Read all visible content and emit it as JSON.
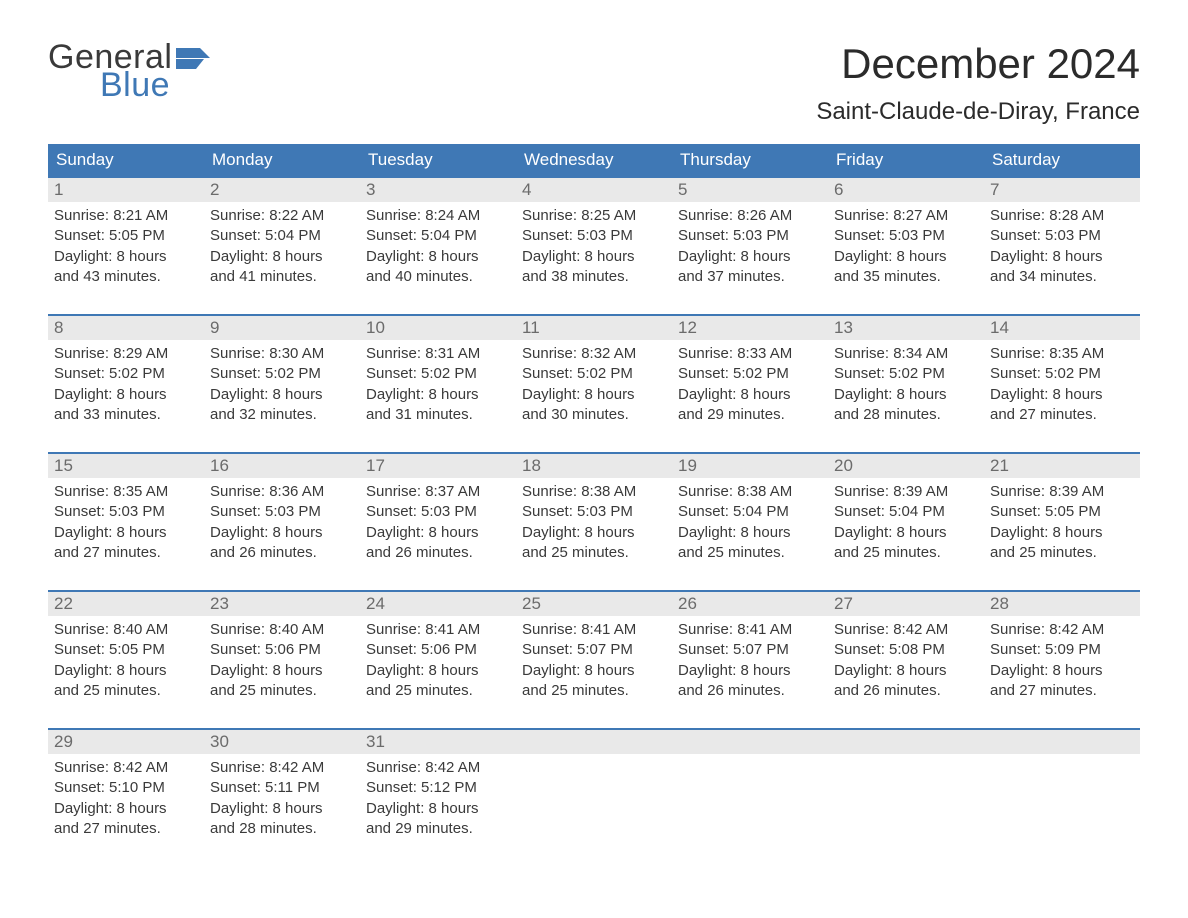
{
  "brand": {
    "word1": "General",
    "word2": "Blue",
    "accent_color": "#3f78b5",
    "text_color": "#3a3a3a"
  },
  "title": "December 2024",
  "location": "Saint-Claude-de-Diray, France",
  "colors": {
    "header_bg": "#3f78b5",
    "header_text": "#ffffff",
    "daynum_bg": "#e9e9e9",
    "daynum_text": "#6b6b6b",
    "body_text": "#3a3a3a",
    "week_border": "#3f78b5",
    "page_bg": "#ffffff"
  },
  "typography": {
    "title_fontsize": 42,
    "location_fontsize": 24,
    "dayheader_fontsize": 17,
    "daynum_fontsize": 17,
    "body_fontsize": 15
  },
  "day_headers": [
    "Sunday",
    "Monday",
    "Tuesday",
    "Wednesday",
    "Thursday",
    "Friday",
    "Saturday"
  ],
  "weeks": [
    [
      {
        "n": "1",
        "sunrise": "Sunrise: 8:21 AM",
        "sunset": "Sunset: 5:05 PM",
        "dl1": "Daylight: 8 hours",
        "dl2": "and 43 minutes."
      },
      {
        "n": "2",
        "sunrise": "Sunrise: 8:22 AM",
        "sunset": "Sunset: 5:04 PM",
        "dl1": "Daylight: 8 hours",
        "dl2": "and 41 minutes."
      },
      {
        "n": "3",
        "sunrise": "Sunrise: 8:24 AM",
        "sunset": "Sunset: 5:04 PM",
        "dl1": "Daylight: 8 hours",
        "dl2": "and 40 minutes."
      },
      {
        "n": "4",
        "sunrise": "Sunrise: 8:25 AM",
        "sunset": "Sunset: 5:03 PM",
        "dl1": "Daylight: 8 hours",
        "dl2": "and 38 minutes."
      },
      {
        "n": "5",
        "sunrise": "Sunrise: 8:26 AM",
        "sunset": "Sunset: 5:03 PM",
        "dl1": "Daylight: 8 hours",
        "dl2": "and 37 minutes."
      },
      {
        "n": "6",
        "sunrise": "Sunrise: 8:27 AM",
        "sunset": "Sunset: 5:03 PM",
        "dl1": "Daylight: 8 hours",
        "dl2": "and 35 minutes."
      },
      {
        "n": "7",
        "sunrise": "Sunrise: 8:28 AM",
        "sunset": "Sunset: 5:03 PM",
        "dl1": "Daylight: 8 hours",
        "dl2": "and 34 minutes."
      }
    ],
    [
      {
        "n": "8",
        "sunrise": "Sunrise: 8:29 AM",
        "sunset": "Sunset: 5:02 PM",
        "dl1": "Daylight: 8 hours",
        "dl2": "and 33 minutes."
      },
      {
        "n": "9",
        "sunrise": "Sunrise: 8:30 AM",
        "sunset": "Sunset: 5:02 PM",
        "dl1": "Daylight: 8 hours",
        "dl2": "and 32 minutes."
      },
      {
        "n": "10",
        "sunrise": "Sunrise: 8:31 AM",
        "sunset": "Sunset: 5:02 PM",
        "dl1": "Daylight: 8 hours",
        "dl2": "and 31 minutes."
      },
      {
        "n": "11",
        "sunrise": "Sunrise: 8:32 AM",
        "sunset": "Sunset: 5:02 PM",
        "dl1": "Daylight: 8 hours",
        "dl2": "and 30 minutes."
      },
      {
        "n": "12",
        "sunrise": "Sunrise: 8:33 AM",
        "sunset": "Sunset: 5:02 PM",
        "dl1": "Daylight: 8 hours",
        "dl2": "and 29 minutes."
      },
      {
        "n": "13",
        "sunrise": "Sunrise: 8:34 AM",
        "sunset": "Sunset: 5:02 PM",
        "dl1": "Daylight: 8 hours",
        "dl2": "and 28 minutes."
      },
      {
        "n": "14",
        "sunrise": "Sunrise: 8:35 AM",
        "sunset": "Sunset: 5:02 PM",
        "dl1": "Daylight: 8 hours",
        "dl2": "and 27 minutes."
      }
    ],
    [
      {
        "n": "15",
        "sunrise": "Sunrise: 8:35 AM",
        "sunset": "Sunset: 5:03 PM",
        "dl1": "Daylight: 8 hours",
        "dl2": "and 27 minutes."
      },
      {
        "n": "16",
        "sunrise": "Sunrise: 8:36 AM",
        "sunset": "Sunset: 5:03 PM",
        "dl1": "Daylight: 8 hours",
        "dl2": "and 26 minutes."
      },
      {
        "n": "17",
        "sunrise": "Sunrise: 8:37 AM",
        "sunset": "Sunset: 5:03 PM",
        "dl1": "Daylight: 8 hours",
        "dl2": "and 26 minutes."
      },
      {
        "n": "18",
        "sunrise": "Sunrise: 8:38 AM",
        "sunset": "Sunset: 5:03 PM",
        "dl1": "Daylight: 8 hours",
        "dl2": "and 25 minutes."
      },
      {
        "n": "19",
        "sunrise": "Sunrise: 8:38 AM",
        "sunset": "Sunset: 5:04 PM",
        "dl1": "Daylight: 8 hours",
        "dl2": "and 25 minutes."
      },
      {
        "n": "20",
        "sunrise": "Sunrise: 8:39 AM",
        "sunset": "Sunset: 5:04 PM",
        "dl1": "Daylight: 8 hours",
        "dl2": "and 25 minutes."
      },
      {
        "n": "21",
        "sunrise": "Sunrise: 8:39 AM",
        "sunset": "Sunset: 5:05 PM",
        "dl1": "Daylight: 8 hours",
        "dl2": "and 25 minutes."
      }
    ],
    [
      {
        "n": "22",
        "sunrise": "Sunrise: 8:40 AM",
        "sunset": "Sunset: 5:05 PM",
        "dl1": "Daylight: 8 hours",
        "dl2": "and 25 minutes."
      },
      {
        "n": "23",
        "sunrise": "Sunrise: 8:40 AM",
        "sunset": "Sunset: 5:06 PM",
        "dl1": "Daylight: 8 hours",
        "dl2": "and 25 minutes."
      },
      {
        "n": "24",
        "sunrise": "Sunrise: 8:41 AM",
        "sunset": "Sunset: 5:06 PM",
        "dl1": "Daylight: 8 hours",
        "dl2": "and 25 minutes."
      },
      {
        "n": "25",
        "sunrise": "Sunrise: 8:41 AM",
        "sunset": "Sunset: 5:07 PM",
        "dl1": "Daylight: 8 hours",
        "dl2": "and 25 minutes."
      },
      {
        "n": "26",
        "sunrise": "Sunrise: 8:41 AM",
        "sunset": "Sunset: 5:07 PM",
        "dl1": "Daylight: 8 hours",
        "dl2": "and 26 minutes."
      },
      {
        "n": "27",
        "sunrise": "Sunrise: 8:42 AM",
        "sunset": "Sunset: 5:08 PM",
        "dl1": "Daylight: 8 hours",
        "dl2": "and 26 minutes."
      },
      {
        "n": "28",
        "sunrise": "Sunrise: 8:42 AM",
        "sunset": "Sunset: 5:09 PM",
        "dl1": "Daylight: 8 hours",
        "dl2": "and 27 minutes."
      }
    ],
    [
      {
        "n": "29",
        "sunrise": "Sunrise: 8:42 AM",
        "sunset": "Sunset: 5:10 PM",
        "dl1": "Daylight: 8 hours",
        "dl2": "and 27 minutes."
      },
      {
        "n": "30",
        "sunrise": "Sunrise: 8:42 AM",
        "sunset": "Sunset: 5:11 PM",
        "dl1": "Daylight: 8 hours",
        "dl2": "and 28 minutes."
      },
      {
        "n": "31",
        "sunrise": "Sunrise: 8:42 AM",
        "sunset": "Sunset: 5:12 PM",
        "dl1": "Daylight: 8 hours",
        "dl2": "and 29 minutes."
      },
      {
        "n": "",
        "sunrise": "",
        "sunset": "",
        "dl1": "",
        "dl2": ""
      },
      {
        "n": "",
        "sunrise": "",
        "sunset": "",
        "dl1": "",
        "dl2": ""
      },
      {
        "n": "",
        "sunrise": "",
        "sunset": "",
        "dl1": "",
        "dl2": ""
      },
      {
        "n": "",
        "sunrise": "",
        "sunset": "",
        "dl1": "",
        "dl2": ""
      }
    ]
  ]
}
